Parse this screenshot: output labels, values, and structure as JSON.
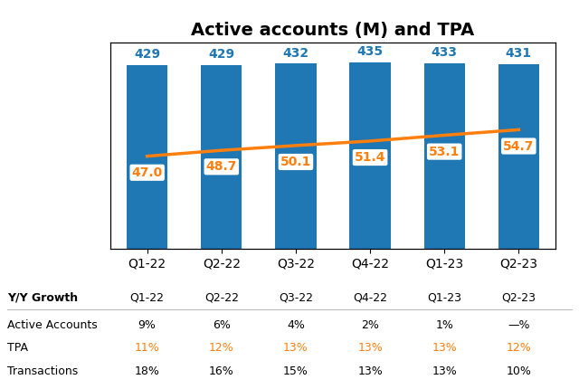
{
  "chart_data": {
    "type": "bar",
    "title": "Active accounts (M) and TPA",
    "categories": [
      "Q1-22",
      "Q2-22",
      "Q3-22",
      "Q4-22",
      "Q1-23",
      "Q2-23"
    ],
    "series": [
      {
        "type": "bar",
        "color": "#1f77b4",
        "values": [
          429,
          429,
          432,
          435,
          433,
          431
        ],
        "data_labels": true
      },
      {
        "type": "line",
        "axis": "y2",
        "color": "#ff7f0e",
        "values": [
          47.0,
          48.7,
          50.1,
          51.4,
          53.1,
          54.7
        ],
        "value_labels": [
          "47.0",
          "48.7",
          "50.1",
          "51.4",
          "53.1",
          "54.7"
        ],
        "data_labels": true
      }
    ],
    "ylim": [
      0,
      480
    ],
    "y2lim": [
      20,
      80
    ],
    "tick_labels": "x",
    "table": {
      "title": "Y/Y Growth",
      "rows": [
        {
          "name": "Active Accounts",
          "values": [
            "9%",
            "6%",
            "4%",
            "2%",
            "1%",
            "—%"
          ]
        },
        {
          "name": "TPA",
          "values": [
            "11%",
            "12%",
            "13%",
            "13%",
            "13%",
            "12%"
          ],
          "color": "#ff7f0e"
        },
        {
          "name": "Transactions",
          "values": [
            "18%",
            "16%",
            "15%",
            "13%",
            "13%",
            "10%"
          ]
        }
      ]
    }
  }
}
